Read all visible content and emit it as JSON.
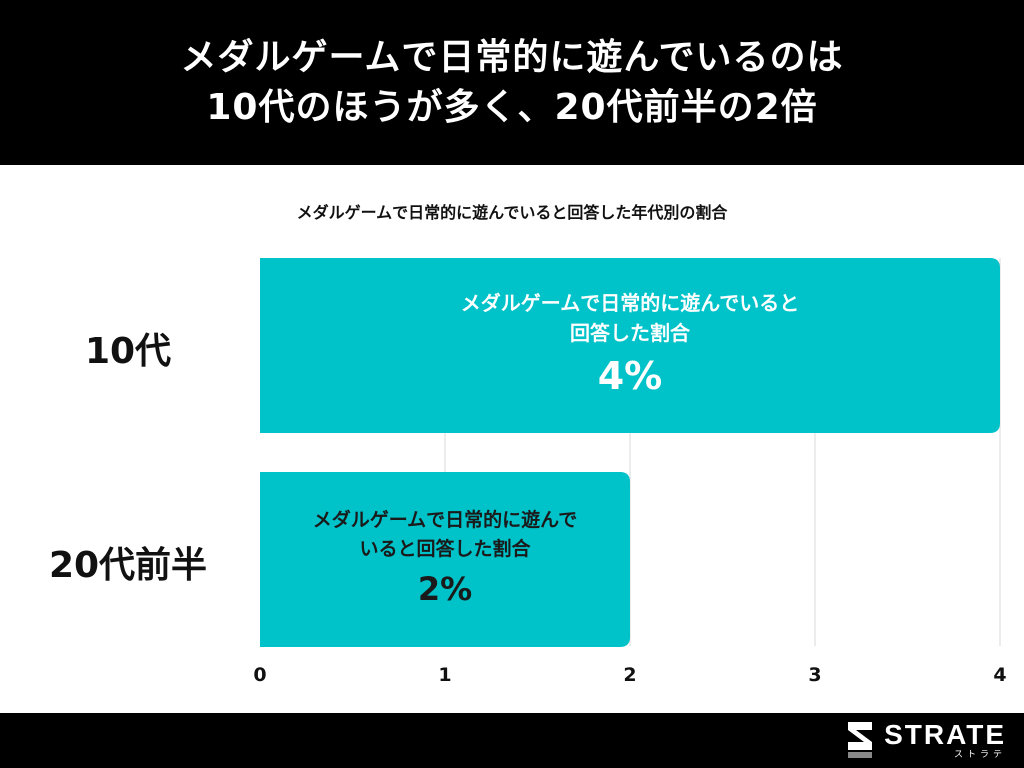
{
  "header": {
    "line1": "メダルゲームで日常的に遊んでいるのは",
    "line2": "10代のほうが多く、20代前半の2倍"
  },
  "chart_data": {
    "type": "bar",
    "orientation": "horizontal",
    "title": "メダルゲームで日常的に遊んでいると回答した年代別の割合",
    "categories": [
      "10代",
      "20代前半"
    ],
    "values": [
      4,
      2
    ],
    "value_labels": [
      "4%",
      "2%"
    ],
    "bar_descriptions": [
      "メダルゲームで日常的に遊んでいると\n回答した割合",
      "メダルゲームで日常的に遊んで\nいると回答した割合"
    ],
    "xlim": [
      0,
      4
    ],
    "xticks": [
      "0",
      "1",
      "2",
      "3",
      "4"
    ],
    "grid": true,
    "legend": "none",
    "colors": {
      "bar": "#00c2c9"
    }
  },
  "footer": {
    "brand": "STRATE",
    "brand_kana": "ストラテ"
  }
}
